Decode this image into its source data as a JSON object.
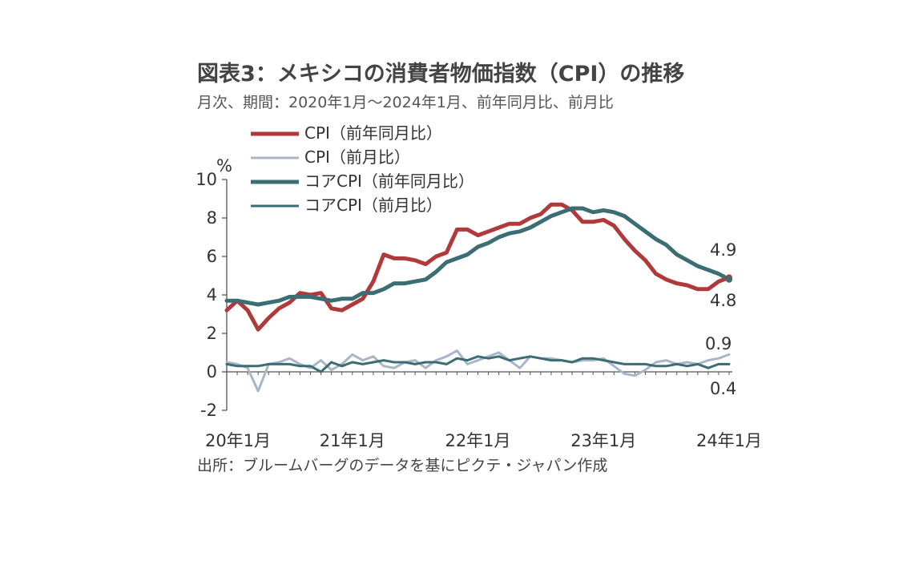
{
  "title": "図表3：メキシコの消費者物価指数（CPI）の推移",
  "subtitle": "月次、期間：2020年1月～2024年1月、前年同月比、前月比",
  "source": "出所：ブルームバーグのデータを基にピクテ・ジャパン作成",
  "chart_data": {
    "type": "line",
    "y_unit": "%",
    "ylim": [
      -2,
      10
    ],
    "yticks": [
      -2,
      0,
      2,
      4,
      6,
      8,
      10
    ],
    "x_start": "2020-01",
    "x_ticks": [
      "20年1月",
      "21年1月",
      "22年1月",
      "23年1月",
      "24年1月"
    ],
    "grid": false,
    "legend_position": "top-left",
    "series": [
      {
        "name": "CPI（前年同月比）",
        "color": "#b03a3a",
        "width": 5,
        "values": [
          3.2,
          3.7,
          3.2,
          2.2,
          2.8,
          3.3,
          3.6,
          4.1,
          4.0,
          4.1,
          3.3,
          3.2,
          3.5,
          3.8,
          4.7,
          6.1,
          5.9,
          5.9,
          5.8,
          5.6,
          6.0,
          6.2,
          7.4,
          7.4,
          7.1,
          7.3,
          7.5,
          7.7,
          7.7,
          8.0,
          8.2,
          8.7,
          8.7,
          8.4,
          7.8,
          7.8,
          7.9,
          7.6,
          6.9,
          6.3,
          5.8,
          5.1,
          4.8,
          4.6,
          4.5,
          4.3,
          4.3,
          4.7,
          4.9
        ]
      },
      {
        "name": "CPI（前月比）",
        "color": "#a9b5c8",
        "width": 3,
        "values": [
          0.5,
          0.4,
          0.2,
          -1.0,
          0.4,
          0.5,
          0.7,
          0.4,
          0.2,
          0.6,
          0.1,
          0.4,
          0.9,
          0.6,
          0.8,
          0.3,
          0.2,
          0.5,
          0.6,
          0.2,
          0.6,
          0.8,
          1.1,
          0.4,
          0.6,
          0.8,
          1.0,
          0.6,
          0.2,
          0.8,
          0.7,
          0.7,
          0.6,
          0.5,
          0.6,
          0.6,
          0.7,
          0.3,
          -0.1,
          -0.2,
          0.1,
          0.5,
          0.6,
          0.4,
          0.5,
          0.4,
          0.6,
          0.7,
          0.9
        ]
      },
      {
        "name": "コアCPI（前年同月比）",
        "color": "#3a6e73",
        "width": 5,
        "values": [
          3.7,
          3.7,
          3.6,
          3.5,
          3.6,
          3.7,
          3.9,
          3.9,
          3.9,
          3.8,
          3.7,
          3.8,
          3.8,
          4.1,
          4.1,
          4.3,
          4.6,
          4.6,
          4.7,
          4.8,
          5.2,
          5.7,
          5.9,
          6.1,
          6.5,
          6.7,
          7.0,
          7.2,
          7.3,
          7.5,
          7.8,
          8.1,
          8.3,
          8.5,
          8.5,
          8.3,
          8.4,
          8.3,
          8.1,
          7.7,
          7.3,
          6.9,
          6.6,
          6.1,
          5.8,
          5.5,
          5.3,
          5.1,
          4.8
        ]
      },
      {
        "name": "コアCPI（前月比）",
        "color": "#3a6e73",
        "width": 3,
        "values": [
          0.4,
          0.3,
          0.3,
          0.3,
          0.4,
          0.4,
          0.4,
          0.3,
          0.3,
          0.0,
          0.5,
          0.3,
          0.5,
          0.4,
          0.5,
          0.6,
          0.5,
          0.5,
          0.4,
          0.5,
          0.5,
          0.4,
          0.7,
          0.6,
          0.8,
          0.7,
          0.8,
          0.6,
          0.7,
          0.8,
          0.7,
          0.6,
          0.6,
          0.5,
          0.7,
          0.7,
          0.6,
          0.5,
          0.4,
          0.4,
          0.4,
          0.3,
          0.3,
          0.4,
          0.3,
          0.4,
          0.2,
          0.4,
          0.4
        ]
      }
    ],
    "annotations": [
      "4.9",
      "4.8",
      "0.9",
      "0.4"
    ]
  }
}
